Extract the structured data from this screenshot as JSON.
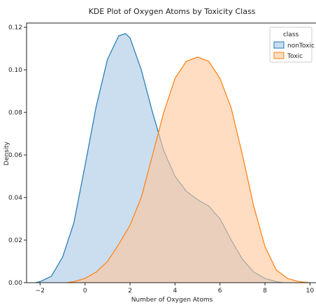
{
  "chart_data": {
    "type": "area",
    "title": "KDE Plot of Oxygen Atoms by Toxicity Class",
    "xlabel": "Number of Oxygen Atoms",
    "ylabel": "Density",
    "xlim": [
      -2.6,
      10.3
    ],
    "ylim": [
      0,
      0.122
    ],
    "xticks": [
      -2,
      0,
      2,
      4,
      6,
      8,
      10
    ],
    "yticks": [
      0.0,
      0.02,
      0.04,
      0.06,
      0.08,
      0.1,
      0.12
    ],
    "ytick_labels": [
      "0.00",
      "0.02",
      "0.04",
      "0.06",
      "0.08",
      "0.10",
      "0.12"
    ],
    "grid": false,
    "legend": {
      "title": "class",
      "placement": "top-right"
    },
    "series": [
      {
        "name": "nonToxic",
        "line_color": "#1f77b4",
        "fill_color": "#a6c8e4",
        "x": [
          -2.2,
          -2.0,
          -1.5,
          -1.0,
          -0.5,
          0.0,
          0.5,
          1.0,
          1.5,
          1.8,
          2.0,
          2.5,
          3.0,
          3.5,
          4.0,
          4.5,
          5.0,
          5.5,
          6.0,
          6.5,
          7.0,
          7.5,
          8.0,
          8.5,
          8.8
        ],
        "y": [
          0.0,
          0.0005,
          0.003,
          0.012,
          0.028,
          0.055,
          0.083,
          0.105,
          0.116,
          0.117,
          0.115,
          0.1,
          0.08,
          0.062,
          0.05,
          0.043,
          0.039,
          0.036,
          0.03,
          0.02,
          0.011,
          0.005,
          0.002,
          0.0005,
          0.0
        ]
      },
      {
        "name": "Toxic",
        "line_color": "#ff7f0e",
        "fill_color": "#ffc79a",
        "x": [
          -0.8,
          -0.5,
          0.0,
          0.5,
          1.0,
          1.5,
          2.0,
          2.5,
          3.0,
          3.5,
          4.0,
          4.5,
          5.0,
          5.5,
          6.0,
          6.5,
          7.0,
          7.5,
          8.0,
          8.5,
          9.0,
          9.5,
          10.0
        ],
        "y": [
          0.0,
          0.0005,
          0.002,
          0.005,
          0.01,
          0.018,
          0.027,
          0.04,
          0.06,
          0.08,
          0.096,
          0.104,
          0.106,
          0.104,
          0.096,
          0.082,
          0.06,
          0.036,
          0.017,
          0.006,
          0.002,
          0.0005,
          0.0
        ]
      }
    ]
  }
}
